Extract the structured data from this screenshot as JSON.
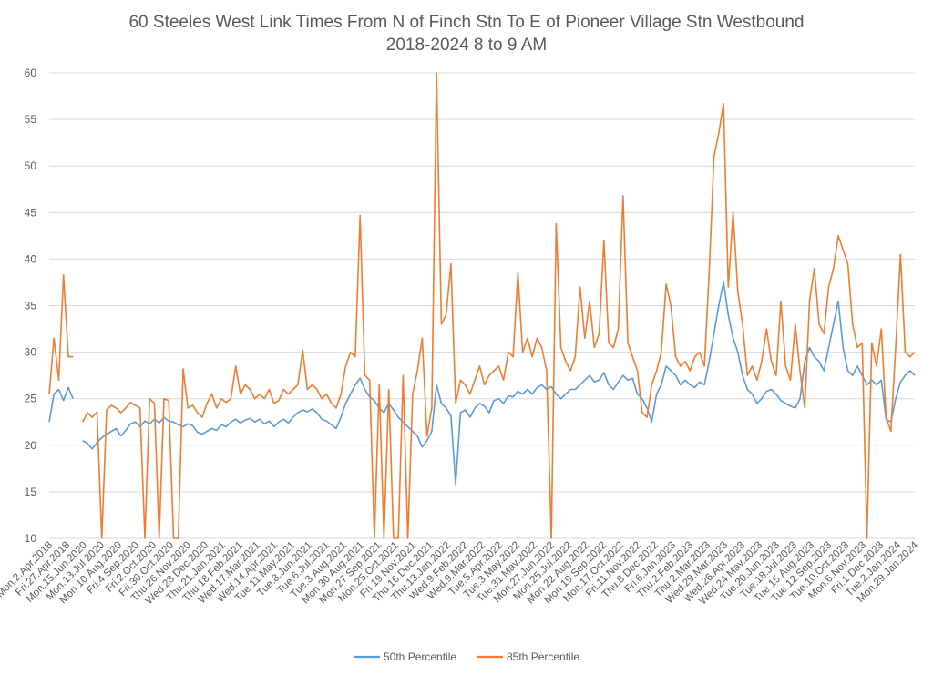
{
  "chart_data": {
    "type": "line",
    "title": "60 Steeles West Link Times From N of Finch Stn To E of Pioneer Village Stn Westbound",
    "subtitle": "2018-2024 8 to 9 AM",
    "xlabel": "",
    "ylabel": "",
    "ylim": [
      10,
      60
    ],
    "yticks": [
      10,
      15,
      20,
      25,
      30,
      35,
      40,
      45,
      50,
      55,
      60
    ],
    "grid": true,
    "legend_position": "bottom",
    "x_tick_labels": [
      "Mon.2.Apr.2018",
      "Fri.27.Apr.2018",
      "Mon.15.Jun.2020",
      "Mon.13.Jul.2020",
      "Mon.10.Aug.2020",
      "Fri.4.Sep.2020",
      "Fri.2.Oct.2020",
      "Fri.30.Oct.2020",
      "Thu.26.Nov.2020",
      "Wed.23.Dec.2020",
      "Thu.21.Jan.2021",
      "Thu.18.Feb.2021",
      "Wed.17.Mar.2021",
      "Wed.14.Apr.2021",
      "Tue.11.May.2021",
      "Tue.8.Jun.2021",
      "Tue.6.Jul.2021",
      "Tue.3.Aug.2021",
      "Mon.30.Aug.2021",
      "Mon.27.Sep.2021",
      "Mon.25.Oct.2021",
      "Fri.19.Nov.2021",
      "Thu.16.Dec.2021",
      "Thu.13.Jan.2022",
      "Wed.9.Feb.2022",
      "Wed.9.Mar.2022",
      "Tue.5.Apr.2022",
      "Tue.3.May.2022",
      "Tue.31.May.2022",
      "Mon.27.Jun.2022",
      "Mon.25.Jul.2022",
      "Mon.22.Aug.2022",
      "Mon.19.Sep.2022",
      "Mon.17.Oct.2022",
      "Fri.11.Nov.2022",
      "Thu.8.Dec.2022",
      "Fri.6.Jan.2023",
      "Thu.2.Feb.2023",
      "Thu.2.Mar.2023",
      "Wed.29.Mar.2023",
      "Wed.26.Apr.2023",
      "Wed.24.May.2023",
      "Tue.20.Jun.2023",
      "Tue.18.Jul.2023",
      "Tue.15.Aug.2023",
      "Tue.12.Sep.2023",
      "Tue.10.Oct.2023",
      "Mon.6.Nov.2023",
      "Fri.1.Dec.2023",
      "Tue.2.Jan.2024",
      "Mon.29.Jan.2024"
    ],
    "series": [
      {
        "name": "50th Percentile",
        "color": "#5B9BD5",
        "values": [
          22.5,
          25.5,
          26.0,
          24.8,
          26.2,
          25.0,
          null,
          20.5,
          20.2,
          19.6,
          20.3,
          20.8,
          21.2,
          21.5,
          21.8,
          21.0,
          21.6,
          22.3,
          22.5,
          22.0,
          22.6,
          22.3,
          22.8,
          22.4,
          23.0,
          22.6,
          22.5,
          22.2,
          22.0,
          22.3,
          22.1,
          21.4,
          21.2,
          21.5,
          21.8,
          21.6,
          22.2,
          22.0,
          22.5,
          22.8,
          22.4,
          22.7,
          22.9,
          22.5,
          22.8,
          22.3,
          22.6,
          22.0,
          22.5,
          22.8,
          22.4,
          23.0,
          23.5,
          23.8,
          23.6,
          23.9,
          23.5,
          22.8,
          22.6,
          22.2,
          21.8,
          23.0,
          24.5,
          25.5,
          26.5,
          27.2,
          26.0,
          25.2,
          24.8,
          24.0,
          23.5,
          24.5,
          23.8,
          23.0,
          22.5,
          22.0,
          21.5,
          21.0,
          19.8,
          20.5,
          21.5,
          26.5,
          24.5,
          24.0,
          23.2,
          15.8,
          23.5,
          23.8,
          23.0,
          24.0,
          24.5,
          24.2,
          23.5,
          24.8,
          25.0,
          24.5,
          25.3,
          25.2,
          25.8,
          25.5,
          26.0,
          25.5,
          26.2,
          26.5,
          26.0,
          26.3,
          25.5,
          25.0,
          25.5,
          26.0,
          26.0,
          26.5,
          27.0,
          27.5,
          26.8,
          27.0,
          27.8,
          26.5,
          26.0,
          26.8,
          27.5,
          27.0,
          27.2,
          25.5,
          25.0,
          24.0,
          22.5,
          25.5,
          26.5,
          28.5,
          28.0,
          27.5,
          26.5,
          27.0,
          26.5,
          26.2,
          26.8,
          26.5,
          29.0,
          32.0,
          35.0,
          37.5,
          34.0,
          31.5,
          30.0,
          27.5,
          26.0,
          25.5,
          24.5,
          25.0,
          25.8,
          26.0,
          25.5,
          24.8,
          24.5,
          24.2,
          24.0,
          25.0,
          29.0,
          30.5,
          29.5,
          29.0,
          28.0,
          30.5,
          33.0,
          35.5,
          30.5,
          28.0,
          27.5,
          28.5,
          27.5,
          26.5,
          27.0,
          26.5,
          27.0,
          22.8,
          22.5,
          25.0,
          26.8,
          27.5,
          28.0,
          27.5
        ]
      },
      {
        "name": "85th Percentile",
        "color": "#ED7D31",
        "values": [
          25.5,
          31.5,
          27.0,
          38.3,
          29.5,
          29.5,
          null,
          22.5,
          23.5,
          23.0,
          23.6,
          10.0,
          23.8,
          24.3,
          24.0,
          23.5,
          24.0,
          24.6,
          24.3,
          24.0,
          10.0,
          25.0,
          24.5,
          10.0,
          25.0,
          24.8,
          10.0,
          10.0,
          28.2,
          24.0,
          24.3,
          23.5,
          23.0,
          24.5,
          25.5,
          24.0,
          25.0,
          24.6,
          25.0,
          28.5,
          25.5,
          26.5,
          26.0,
          25.0,
          25.5,
          25.0,
          26.0,
          24.5,
          24.8,
          26.0,
          25.5,
          26.0,
          26.5,
          30.2,
          26.0,
          26.5,
          26.0,
          25.0,
          25.5,
          24.5,
          24.0,
          25.5,
          28.5,
          30.0,
          29.5,
          44.7,
          27.5,
          27.0,
          10.0,
          26.5,
          10.0,
          26.0,
          10.0,
          10.0,
          27.5,
          10.0,
          25.5,
          28.0,
          31.5,
          21.0,
          24.0,
          60.0,
          33.0,
          34.0,
          39.5,
          24.5,
          27.0,
          26.5,
          25.5,
          27.0,
          28.5,
          26.5,
          27.5,
          28.0,
          28.5,
          27.0,
          30.0,
          29.5,
          38.5,
          30.0,
          31.5,
          29.5,
          31.5,
          30.5,
          28.0,
          10.0,
          43.8,
          30.5,
          29.0,
          28.0,
          29.5,
          37.0,
          31.5,
          35.5,
          30.5,
          32.0,
          42.0,
          31.0,
          30.5,
          32.5,
          46.8,
          31.0,
          29.5,
          28.0,
          23.5,
          23.0,
          26.5,
          28.0,
          30.0,
          37.3,
          35.0,
          29.5,
          28.5,
          29.0,
          28.0,
          29.5,
          30.0,
          28.5,
          38.5,
          51.0,
          53.5,
          56.7,
          37.0,
          45.0,
          36.5,
          33.0,
          27.5,
          28.5,
          27.0,
          29.0,
          32.5,
          29.0,
          27.5,
          35.5,
          28.5,
          27.0,
          33.0,
          28.0,
          24.0,
          35.5,
          39.0,
          33.0,
          32.0,
          37.0,
          39.0,
          42.5,
          41.0,
          39.5,
          33.0,
          30.5,
          31.0,
          10.0,
          31.0,
          28.5,
          32.5,
          23.0,
          21.5,
          30.5,
          40.5,
          30.0,
          29.5,
          30.0
        ]
      }
    ]
  }
}
